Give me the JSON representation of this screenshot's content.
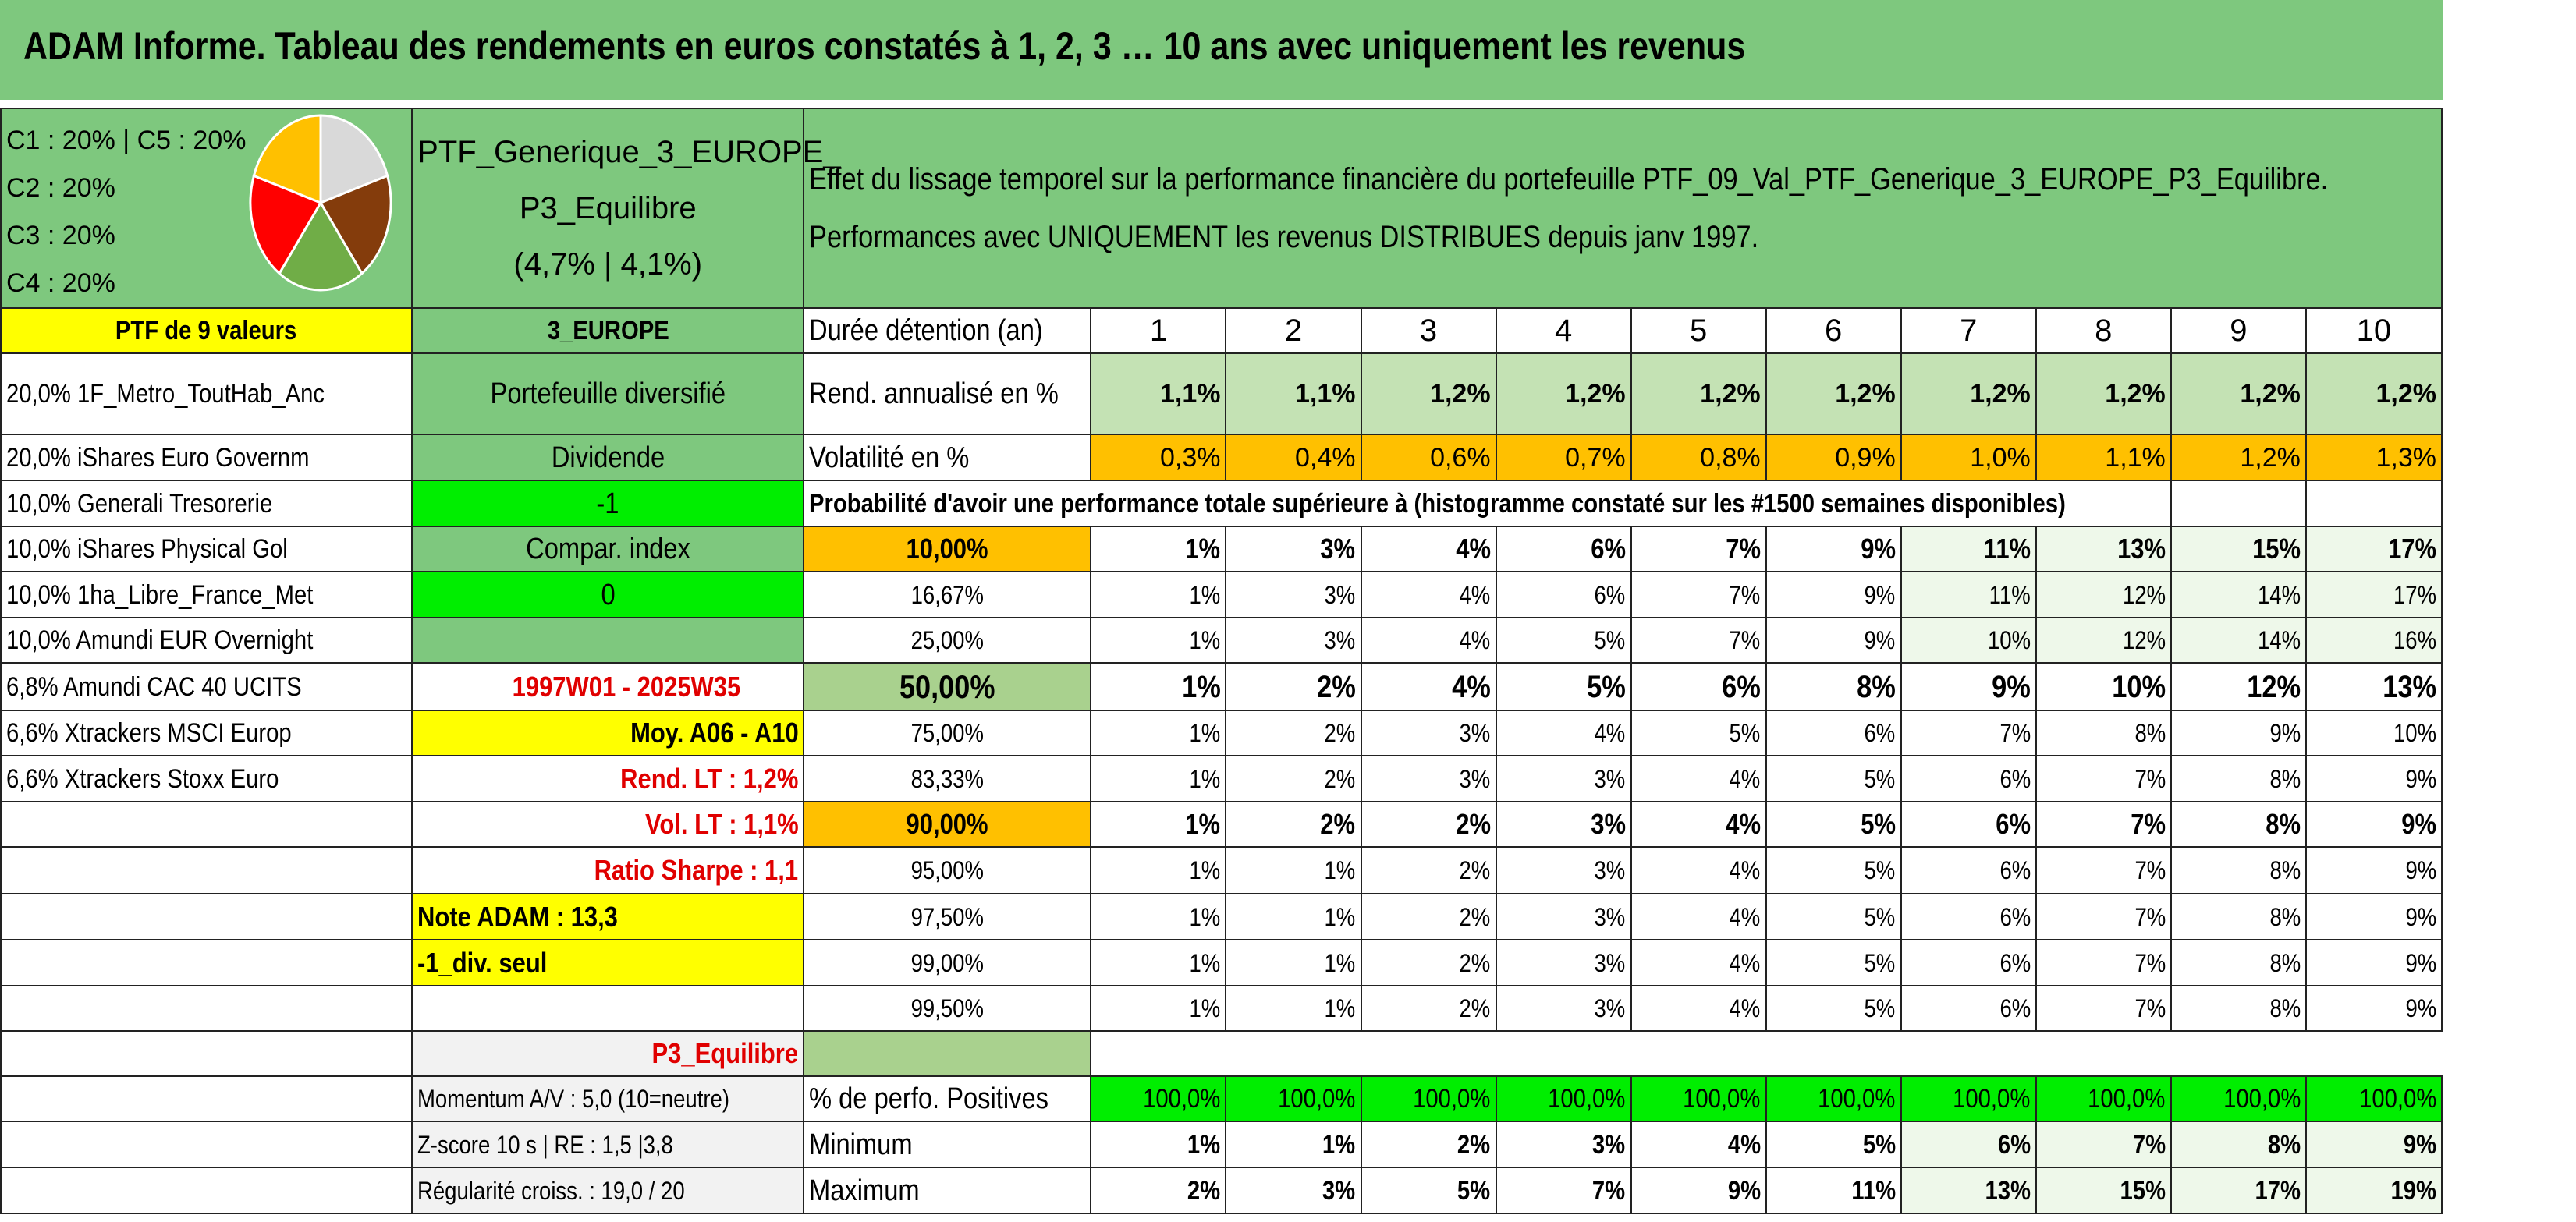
{
  "title": "ADAM Informe. Tableau des rendements en euros constatés à 1, 2, 3 … 10 ans avec uniquement les revenus",
  "legend": [
    "C1 : 20% | C5 : 20%",
    "C2 : 20%",
    "C3 : 20%",
    "C4 : 20%"
  ],
  "pie": {
    "slices": [
      {
        "label": "C1",
        "value": 20,
        "color": "#d9d9d9"
      },
      {
        "label": "C2",
        "value": 20,
        "color": "#843c0c"
      },
      {
        "label": "C3",
        "value": 20,
        "color": "#70ad47"
      },
      {
        "label": "C4",
        "value": 20,
        "color": "#ff0000"
      },
      {
        "label": "C5",
        "value": 20,
        "color": "#ffc000"
      }
    ]
  },
  "portfolio": {
    "name_line1": "PTF_Generique_3_EUROPE_",
    "name_line2": "P3_Equilibre",
    "name_line3": "(4,7% | 4,1%)",
    "header_right_line1": "Effet du lissage temporel sur la performance financière du portefeuille PTF_09_Val_PTF_Generique_3_EUROPE_P3_Equilibre.",
    "header_right_line2": "Performances avec UNIQUEMENT les revenus DISTRIBUES depuis janv 1997."
  },
  "holdings_title": "PTF de 9 valeurs",
  "holdings": [
    "20,0% 1F_Metro_ToutHab_Anc",
    "20,0% iShares Euro Governm",
    "10,0% Generali Tresorerie",
    "10,0% iShares Physical Gol",
    "10,0% 1ha_Libre_France_Met",
    "10,0% Amundi EUR Overnight",
    "6,8% Amundi CAC 40 UCITS",
    "6,6% Xtrackers MSCI Europ",
    "6,6% Xtrackers Stoxx Euro"
  ],
  "info": {
    "zone": "3_EUROPE",
    "type": "Portefeuille diversifié",
    "dividende_label": "Dividende",
    "dividende_value": "-1",
    "compar_label": "Compar. index",
    "compar_value": "0",
    "period": "1997W01 - 2025W35",
    "moy": "Moy. A06 - A10",
    "rend_lt": "Rend. LT : 1,2%",
    "vol_lt": "Vol. LT : 1,1%",
    "sharpe": "Ratio Sharpe : 1,1",
    "note": "Note ADAM : 13,3",
    "div_seul": "-1_div. seul",
    "profile": "P3_Equilibre",
    "momentum": "Momentum A/V : 5,0 (10=neutre)",
    "zscore": "Z-score 10 s | RE : 1,5 |3,8",
    "regularite": "Régularité croiss. : 19,0 / 20"
  },
  "table": {
    "duration_label": "Durée détention (an)",
    "years": [
      "1",
      "2",
      "3",
      "4",
      "5",
      "6",
      "7",
      "8",
      "9",
      "10"
    ],
    "rend_label": "Rend. annualisé en %",
    "rend": [
      "1,1%",
      "1,1%",
      "1,2%",
      "1,2%",
      "1,2%",
      "1,2%",
      "1,2%",
      "1,2%",
      "1,2%",
      "1,2%"
    ],
    "vol_label": "Volatilité en %",
    "vol": [
      "0,3%",
      "0,4%",
      "0,6%",
      "0,7%",
      "0,8%",
      "0,9%",
      "1,0%",
      "1,1%",
      "1,2%",
      "1,3%"
    ],
    "prob_label": "Probabilité d'avoir une performance totale supérieure à (histogramme constaté sur les #1500 semaines disponibles)",
    "prob_rows": [
      {
        "p": "10,00%",
        "v": [
          "1%",
          "3%",
          "4%",
          "6%",
          "7%",
          "9%",
          "11%",
          "13%",
          "15%",
          "17%"
        ]
      },
      {
        "p": "16,67%",
        "v": [
          "1%",
          "3%",
          "4%",
          "6%",
          "7%",
          "9%",
          "11%",
          "12%",
          "14%",
          "17%"
        ]
      },
      {
        "p": "25,00%",
        "v": [
          "1%",
          "3%",
          "4%",
          "5%",
          "7%",
          "9%",
          "10%",
          "12%",
          "14%",
          "16%"
        ]
      },
      {
        "p": "50,00%",
        "v": [
          "1%",
          "2%",
          "4%",
          "5%",
          "6%",
          "8%",
          "9%",
          "10%",
          "12%",
          "13%"
        ]
      },
      {
        "p": "75,00%",
        "v": [
          "1%",
          "2%",
          "3%",
          "4%",
          "5%",
          "6%",
          "7%",
          "8%",
          "9%",
          "10%"
        ]
      },
      {
        "p": "83,33%",
        "v": [
          "1%",
          "2%",
          "3%",
          "3%",
          "4%",
          "5%",
          "6%",
          "7%",
          "8%",
          "9%"
        ]
      },
      {
        "p": "90,00%",
        "v": [
          "1%",
          "2%",
          "2%",
          "3%",
          "4%",
          "5%",
          "6%",
          "7%",
          "8%",
          "9%"
        ]
      },
      {
        "p": "95,00%",
        "v": [
          "1%",
          "1%",
          "2%",
          "3%",
          "4%",
          "5%",
          "6%",
          "7%",
          "8%",
          "9%"
        ]
      },
      {
        "p": "97,50%",
        "v": [
          "1%",
          "1%",
          "2%",
          "3%",
          "4%",
          "5%",
          "6%",
          "7%",
          "8%",
          "9%"
        ]
      },
      {
        "p": "99,00%",
        "v": [
          "1%",
          "1%",
          "2%",
          "3%",
          "4%",
          "5%",
          "6%",
          "7%",
          "8%",
          "9%"
        ]
      },
      {
        "p": "99,50%",
        "v": [
          "1%",
          "1%",
          "2%",
          "3%",
          "4%",
          "5%",
          "6%",
          "7%",
          "8%",
          "9%"
        ]
      }
    ],
    "pos_label": "% de perfo. Positives",
    "pos": [
      "100,0%",
      "100,0%",
      "100,0%",
      "100,0%",
      "100,0%",
      "100,0%",
      "100,0%",
      "100,0%",
      "100,0%",
      "100,0%"
    ],
    "min_label": "Minimum",
    "min": [
      "1%",
      "1%",
      "2%",
      "3%",
      "4%",
      "5%",
      "6%",
      "7%",
      "8%",
      "9%"
    ],
    "max_label": "Maximum",
    "max": [
      "2%",
      "3%",
      "5%",
      "7%",
      "9%",
      "11%",
      "13%",
      "15%",
      "17%",
      "19%"
    ]
  }
}
